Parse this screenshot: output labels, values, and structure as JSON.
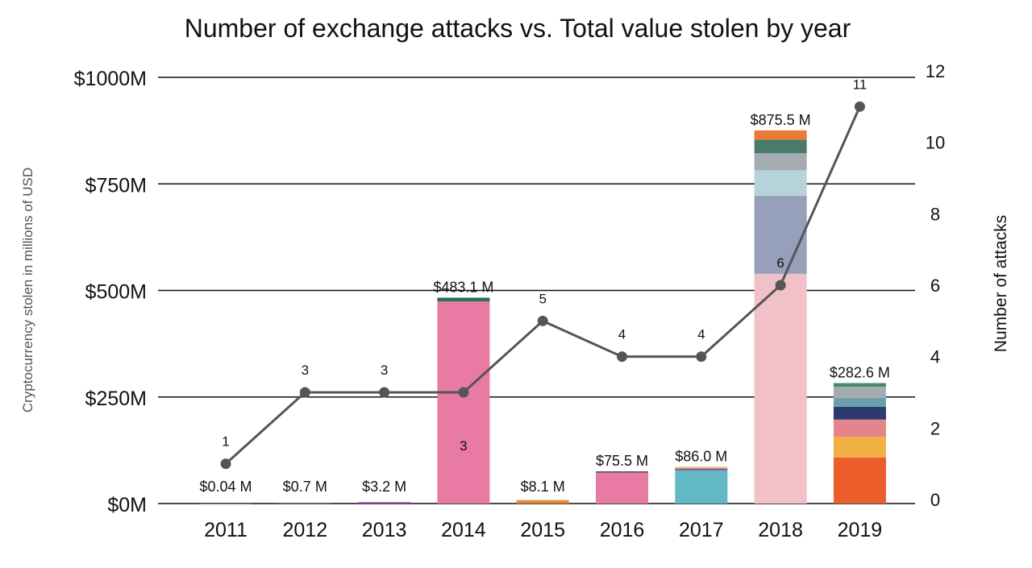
{
  "chart_data": {
    "type": "bar+line",
    "title": "Number of exchange attacks vs. Total value stolen by year",
    "ylabel": "Cryptocurrency stolen in millions of USD",
    "y2label": "Number of attacks",
    "categories": [
      "2011",
      "2012",
      "2013",
      "2014",
      "2015",
      "2016",
      "2017",
      "2018",
      "2019"
    ],
    "ylim": [
      0,
      1000
    ],
    "yticks": [
      0,
      250,
      500,
      750,
      1000
    ],
    "ytick_labels": [
      "$0M",
      "$250M",
      "$500M",
      "$750M",
      "$1000M"
    ],
    "y2lim": [
      0,
      12
    ],
    "y2ticks": [
      "0",
      "2",
      "4",
      "6",
      "8",
      "10",
      "12"
    ],
    "grid": true,
    "totals": [
      0.04,
      0.7,
      3.2,
      483.1,
      8.1,
      75.5,
      86.0,
      875.5,
      282.6
    ],
    "total_labels": [
      "$0.04 M",
      "$0.7 M",
      "$3.2 M",
      "$483.1 M",
      "$8.1 M",
      "$75.5 M",
      "$86.0 M",
      "$875.5 M",
      "$282.6 M"
    ],
    "stacks": [
      [
        {
          "value": 0.04,
          "color": "#8e44ad"
        }
      ],
      [
        {
          "value": 0.7,
          "color": "#8e44ad"
        }
      ],
      [
        {
          "value": 3.2,
          "color": "#8e44ad"
        }
      ],
      [
        {
          "value": 474,
          "color": "#e97aa3"
        },
        {
          "value": 9.1,
          "color": "#2e6b5e"
        }
      ],
      [
        {
          "value": 8.1,
          "color": "#e8873a"
        }
      ],
      [
        {
          "value": 74,
          "color": "#e97aa3"
        },
        {
          "value": 1.5,
          "color": "#3a4a6b"
        }
      ],
      [
        {
          "value": 78,
          "color": "#62b8c4"
        },
        {
          "value": 4,
          "color": "#8e44ad"
        },
        {
          "value": 4,
          "color": "#d9c25a"
        }
      ],
      [
        {
          "value": 539,
          "color": "#f0c2c8"
        },
        {
          "value": 183,
          "color": "#97a0bb"
        },
        {
          "value": 60,
          "color": "#b6d2db"
        },
        {
          "value": 40,
          "color": "#a4abb1"
        },
        {
          "value": 32,
          "color": "#4a7a6a"
        },
        {
          "value": 21.5,
          "color": "#ec7a32"
        }
      ],
      [
        {
          "value": 108,
          "color": "#ec5d2c"
        },
        {
          "value": 49,
          "color": "#f2b043"
        },
        {
          "value": 40,
          "color": "#e3858a"
        },
        {
          "value": 30,
          "color": "#2c3a6e"
        },
        {
          "value": 21,
          "color": "#6a9eaa"
        },
        {
          "value": 26,
          "color": "#a4abb1"
        },
        {
          "value": 8.6,
          "color": "#4a8a6a"
        }
      ]
    ],
    "attacks": [
      1,
      3,
      3,
      3,
      5,
      4,
      4,
      6,
      11
    ],
    "line_color": "#555555"
  }
}
